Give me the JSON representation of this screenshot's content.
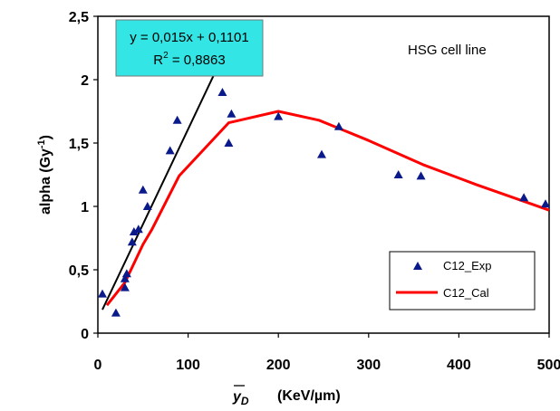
{
  "chart_data": {
    "type": "scatter",
    "title": "",
    "xlabel_symbol": "y",
    "xlabel_subscript": "D",
    "xlabel_unit": "(KeV/µm)",
    "ylabel_main": "alpha (Gy",
    "ylabel_sup": "-1",
    "ylabel_close": ")",
    "xlim": [
      0,
      500
    ],
    "ylim": [
      0,
      2.5
    ],
    "x_ticks": [
      0,
      100,
      200,
      300,
      400,
      500
    ],
    "x_tick_labels": [
      "0",
      "100",
      "200",
      "300",
      "400",
      "500"
    ],
    "y_ticks": [
      0,
      0.5,
      1,
      1.5,
      2,
      2.5
    ],
    "y_tick_labels": [
      "0",
      "0,5",
      "1",
      "1,5",
      "2",
      "2,5"
    ],
    "grid": false,
    "legend_position": "bottom-right",
    "annotation": "HSG cell line",
    "equation_box": {
      "line1": "y = 0,015x + 0,1101",
      "line2_main": "R",
      "line2_sup": "2",
      "line2_rest": " = 0,8863",
      "color": "#33e5e5"
    },
    "series": [
      {
        "name": "C12_Exp",
        "kind": "scatter",
        "marker_color": "#0a1a8a",
        "x": [
          5,
          20,
          30,
          30,
          32,
          38,
          40,
          45,
          50,
          55,
          80,
          88,
          138,
          145,
          148,
          200,
          248,
          267,
          333,
          358,
          472,
          496
        ],
        "y": [
          0.31,
          0.16,
          0.36,
          0.43,
          0.47,
          0.72,
          0.8,
          0.82,
          1.13,
          1.0,
          1.44,
          1.68,
          1.9,
          1.5,
          1.73,
          1.71,
          1.41,
          1.63,
          1.25,
          1.24,
          1.07,
          1.02
        ]
      },
      {
        "name": "C12_Cal",
        "kind": "line",
        "line_color": "#ff0000",
        "x": [
          10,
          30,
          50,
          60,
          90,
          145,
          200,
          245,
          300,
          360,
          420,
          480,
          500
        ],
        "y": [
          0.22,
          0.4,
          0.7,
          0.82,
          1.24,
          1.66,
          1.75,
          1.68,
          1.52,
          1.33,
          1.17,
          1.02,
          0.97
        ]
      },
      {
        "kind": "line",
        "line_color": "#000000",
        "x": [
          5,
          133
        ],
        "y": [
          0.1851,
          2.1051
        ]
      }
    ]
  }
}
